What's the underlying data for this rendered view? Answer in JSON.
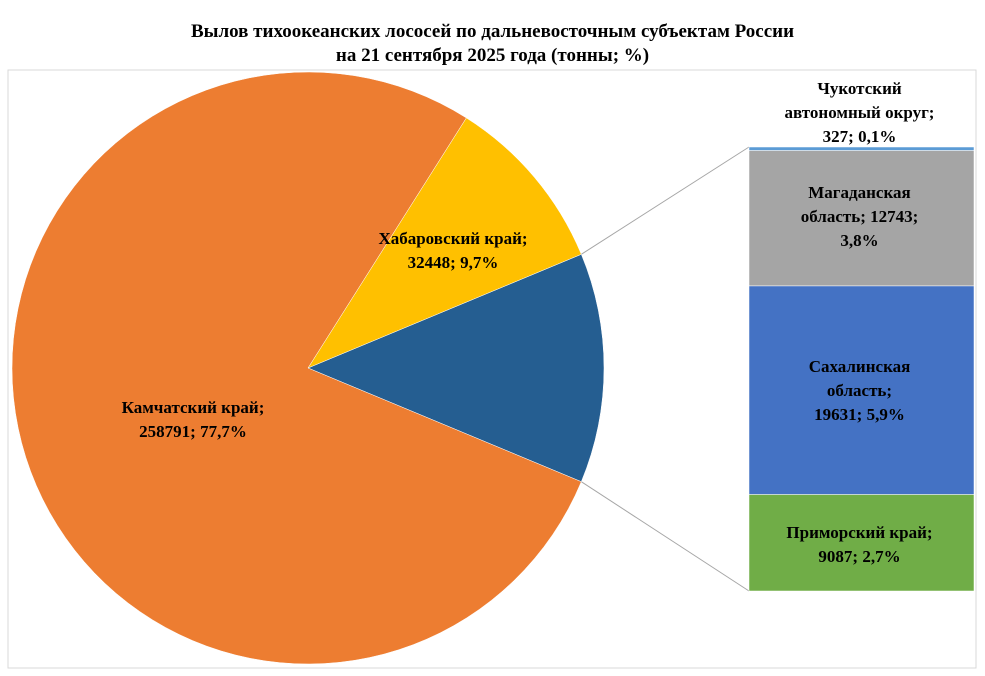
{
  "title_lines": [
    "Вылов тихоокеанских лососей по дальневосточным субъектам России",
    "на 21 сентября 2025 года (тонны; %)"
  ],
  "chart_data": {
    "type": "pie",
    "subtype": "bar-of-pie",
    "title": "Вылов тихоокеанских лососей по дальневосточным субъектам России на 21 сентября 2025 года (тонны; %)",
    "units": "тонны; %",
    "slices": [
      {
        "name": "Камчатский край",
        "value": 258791,
        "percent": 77.7,
        "color": "#ED7D31",
        "label_lines": [
          "Камчатский край;",
          "258791; 77,7%"
        ]
      },
      {
        "name": "Хабаровский край",
        "value": 32448,
        "percent": 9.7,
        "color": "#FFC000",
        "label_lines": [
          "Хабаровский край;",
          "32448; 9,7%"
        ]
      }
    ],
    "other_group": {
      "color": "#255E91"
    },
    "bar_breakdown": [
      {
        "name": "Приморский край",
        "value": 9087,
        "percent": 2.7,
        "color": "#70AD47",
        "label_lines": [
          "Приморский край;",
          "9087; 2,7%"
        ]
      },
      {
        "name": "Сахалинская область",
        "value": 19631,
        "percent": 5.9,
        "color": "#4472C4",
        "label_lines": [
          "Сахалинская",
          "область;",
          "19631; 5,9%"
        ]
      },
      {
        "name": "Магаданская область",
        "value": 12743,
        "percent": 3.8,
        "color": "#A5A5A5",
        "label_lines": [
          "Магаданская",
          "область; 12743;",
          "3,8%"
        ]
      },
      {
        "name": "Чукотский автономный округ",
        "value": 327,
        "percent": 0.1,
        "color": "#5B9BD5",
        "label_lines": [
          "Чукотский",
          "автономный округ;",
          "327; 0,1%"
        ]
      }
    ]
  }
}
